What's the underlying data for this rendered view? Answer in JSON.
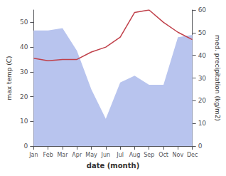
{
  "chart_data": {
    "type": "line",
    "categories": [
      "Jan",
      "Feb",
      "Mar",
      "Apr",
      "May",
      "Jun",
      "Jul",
      "Aug",
      "Sep",
      "Oct",
      "Nov",
      "Dec"
    ],
    "xlabel": "date (month)",
    "ylabel": "max temp (C)",
    "y2label": "med. precipitation (kg/m2)",
    "ylim": [
      0,
      55
    ],
    "yticks": [
      0,
      10,
      20,
      30,
      40,
      50
    ],
    "y2lim": [
      0,
      60
    ],
    "y2ticks": [
      0,
      10,
      20,
      30,
      40,
      50,
      60
    ],
    "grid": false,
    "series": [
      {
        "type": "area",
        "color": "#b8c4ee",
        "axis": "y2",
        "values": [
          51,
          51,
          52,
          42,
          25,
          12,
          28,
          31,
          27,
          27,
          48,
          49
        ]
      },
      {
        "type": "line",
        "color": "#c0404a",
        "values": [
          35.5,
          34.5,
          35,
          35,
          38,
          40,
          44,
          54,
          55,
          50,
          46,
          43
        ]
      }
    ]
  }
}
